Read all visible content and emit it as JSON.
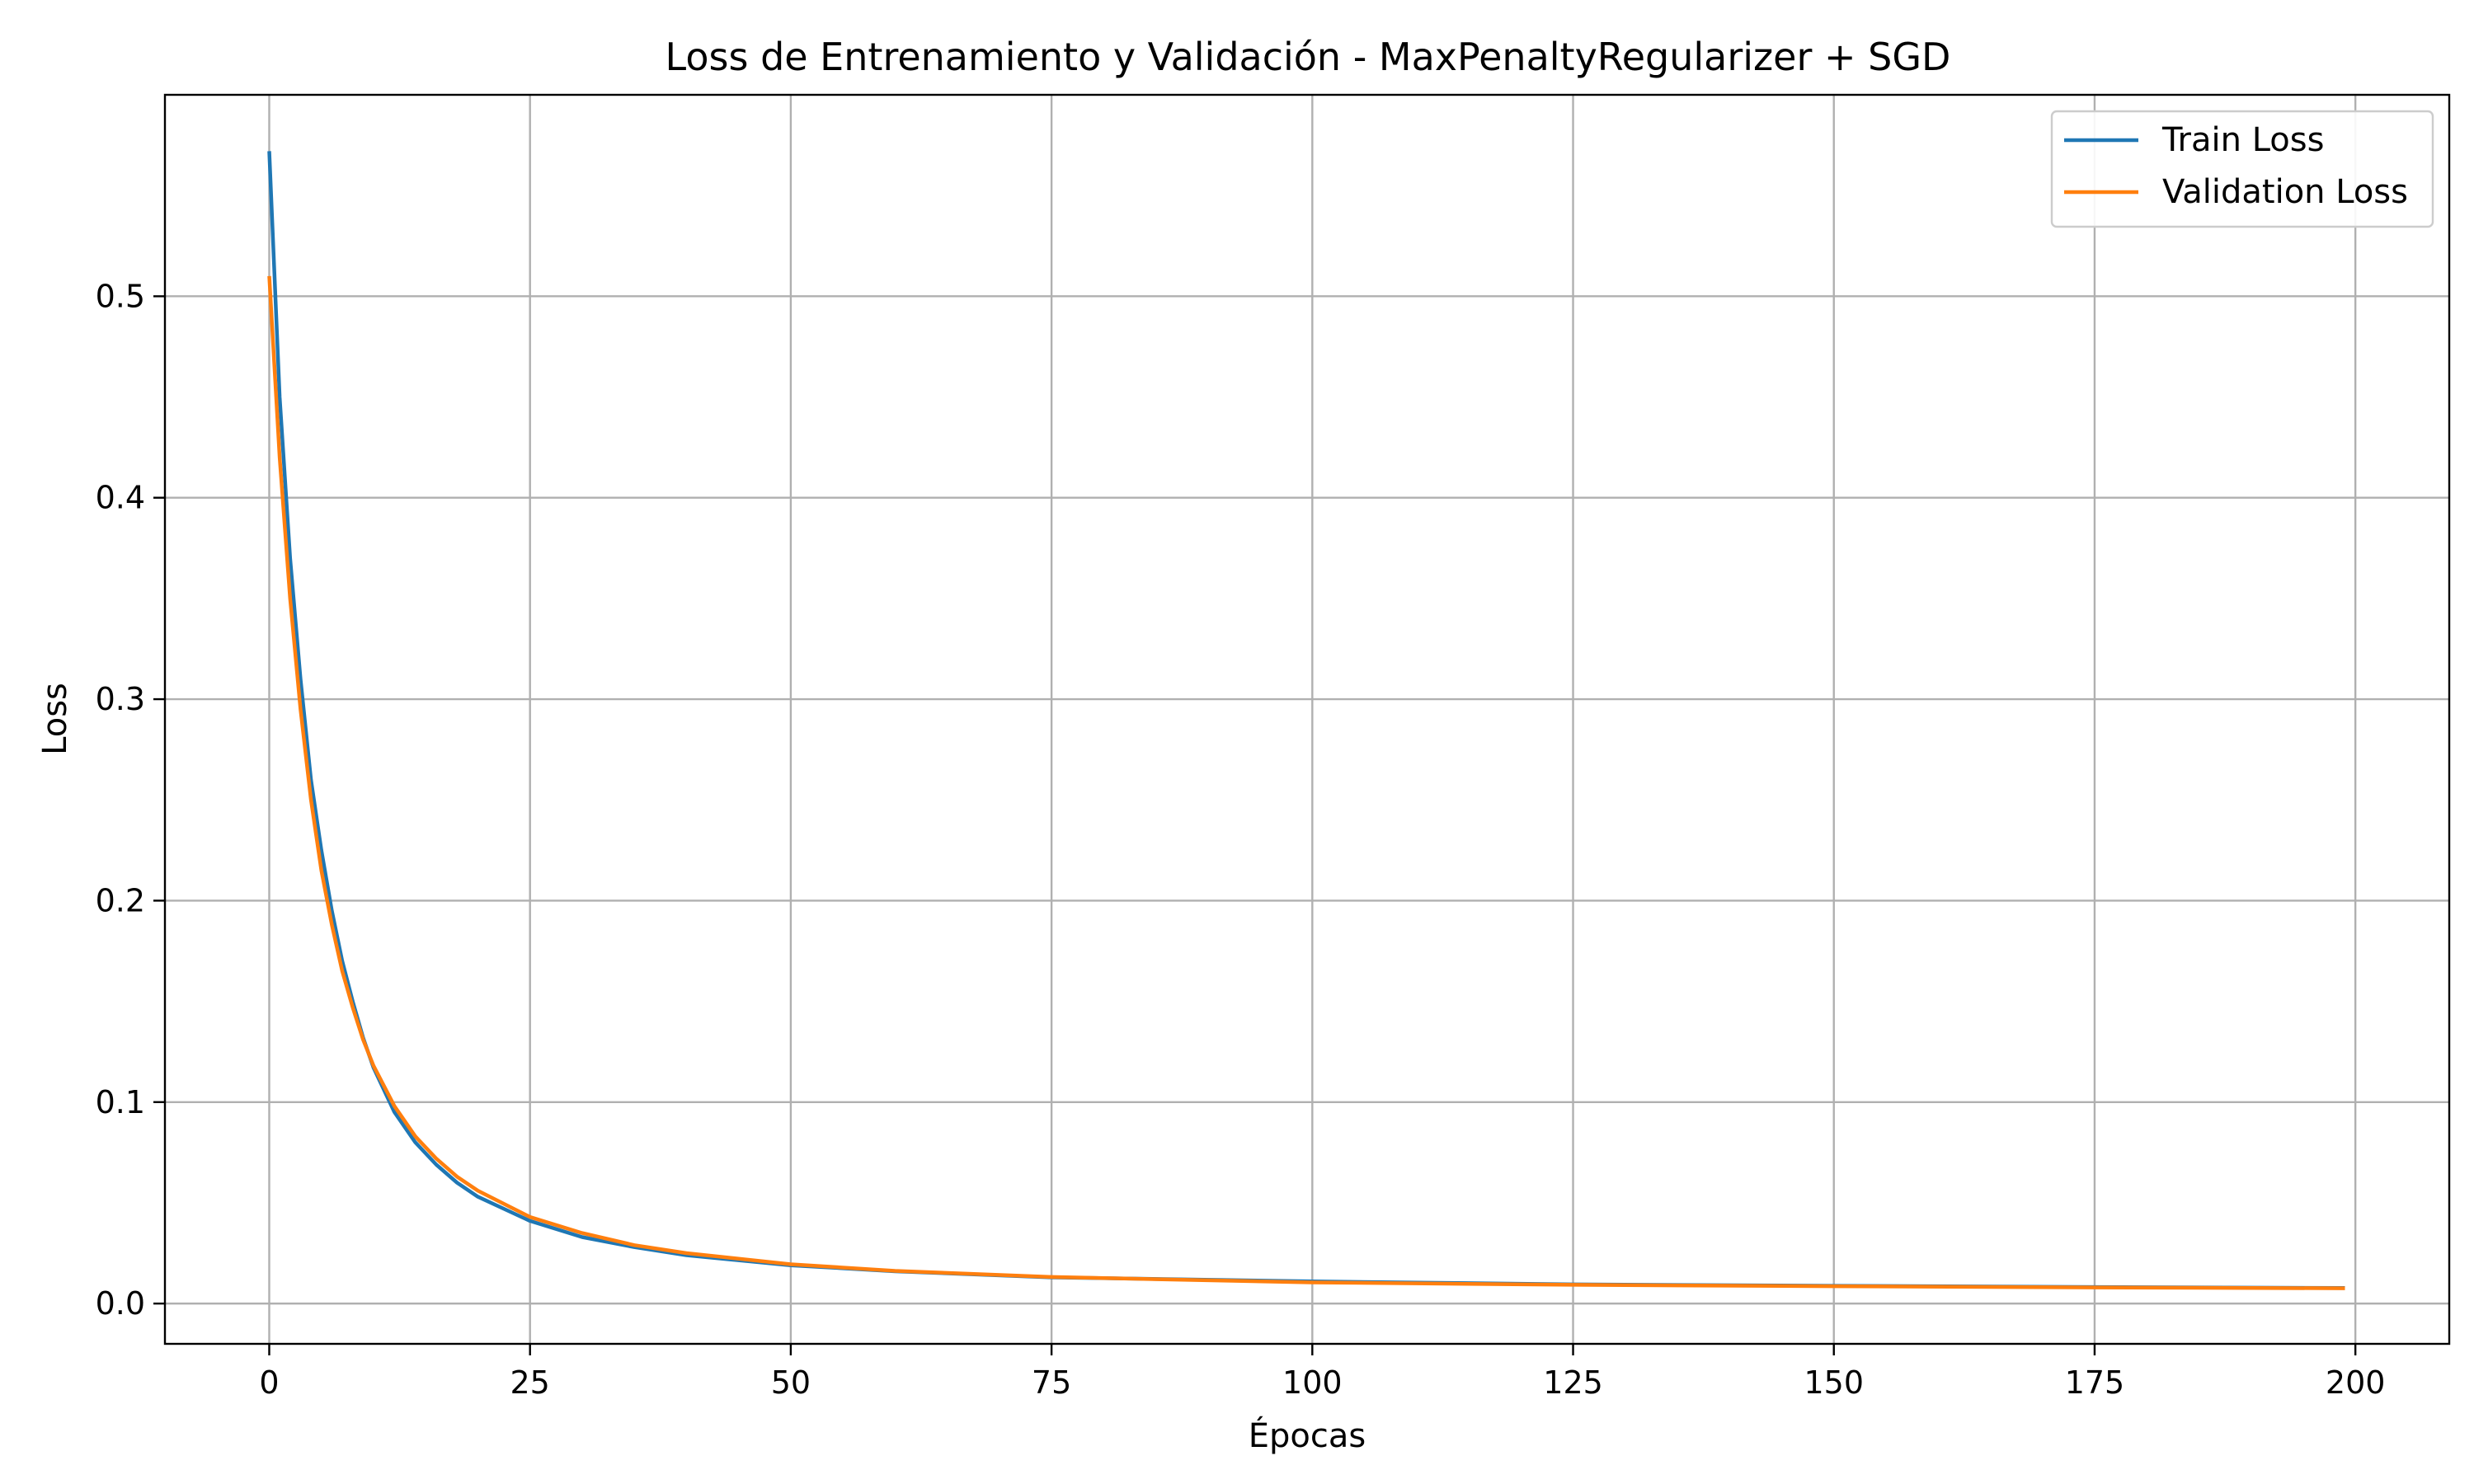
{
  "chart_data": {
    "type": "line",
    "title": "Loss de Entrenamiento y Validación - MaxPenaltyRegularizer + SGD",
    "xlabel": "Épocas",
    "ylabel": "Loss",
    "xlim": [
      -10,
      209
    ],
    "ylim": [
      -0.02,
      0.6
    ],
    "xticks": [
      0,
      25,
      50,
      75,
      100,
      125,
      150,
      175,
      200
    ],
    "xtick_labels": [
      "0",
      "25",
      "50",
      "75",
      "100",
      "125",
      "150",
      "175",
      "200"
    ],
    "yticks": [
      0.0,
      0.1,
      0.2,
      0.3,
      0.4,
      0.5
    ],
    "ytick_labels": [
      "0.0",
      "0.1",
      "0.2",
      "0.3",
      "0.4",
      "0.5"
    ],
    "grid": true,
    "legend_position": "top-right",
    "series": [
      {
        "name": "Train Loss",
        "color": "#1f77b4",
        "x": [
          0,
          1,
          2,
          3,
          4,
          5,
          6,
          7,
          8,
          9,
          10,
          12,
          14,
          16,
          18,
          20,
          25,
          30,
          35,
          40,
          50,
          60,
          75,
          100,
          125,
          150,
          175,
          199
        ],
        "values": [
          0.572,
          0.45,
          0.37,
          0.31,
          0.26,
          0.225,
          0.195,
          0.17,
          0.15,
          0.132,
          0.117,
          0.095,
          0.08,
          0.069,
          0.06,
          0.053,
          0.041,
          0.033,
          0.028,
          0.024,
          0.019,
          0.016,
          0.013,
          0.011,
          0.0095,
          0.0088,
          0.0082,
          0.0077
        ]
      },
      {
        "name": "Validation Loss",
        "color": "#ff7f0e",
        "x": [
          0,
          1,
          2,
          3,
          4,
          5,
          6,
          7,
          8,
          9,
          10,
          12,
          14,
          16,
          18,
          20,
          25,
          30,
          35,
          40,
          50,
          60,
          75,
          100,
          125,
          150,
          175,
          199
        ],
        "values": [
          0.51,
          0.42,
          0.35,
          0.295,
          0.25,
          0.215,
          0.188,
          0.165,
          0.147,
          0.131,
          0.118,
          0.098,
          0.083,
          0.072,
          0.063,
          0.056,
          0.043,
          0.035,
          0.029,
          0.025,
          0.0195,
          0.0162,
          0.0132,
          0.0105,
          0.0093,
          0.0086,
          0.008,
          0.0076
        ]
      }
    ]
  }
}
